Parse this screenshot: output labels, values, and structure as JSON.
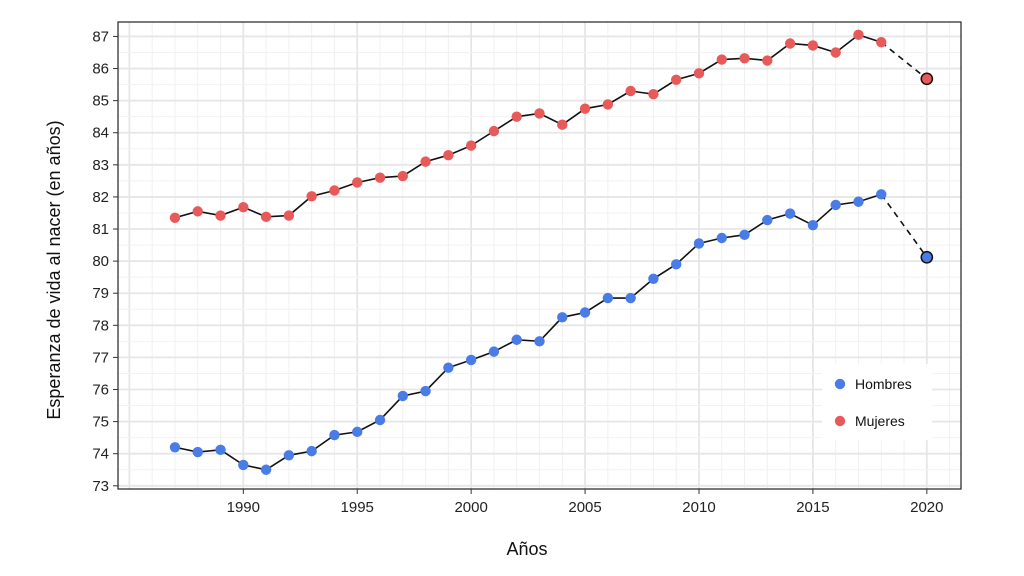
{
  "chart_data": {
    "type": "line",
    "xlabel": "Años",
    "ylabel": "Esperanza de vida al nacer (en años)",
    "xlim": [
      1984.5,
      2021.5
    ],
    "ylim": [
      72.9,
      87.45
    ],
    "x_ticks": [
      1990,
      1995,
      2000,
      2005,
      2010,
      2015,
      2020
    ],
    "y_ticks": [
      73,
      74,
      75,
      76,
      77,
      78,
      79,
      80,
      81,
      82,
      83,
      84,
      85,
      86,
      87
    ],
    "grid": true,
    "legend_position": "bottom-right",
    "series": [
      {
        "name": "Hombres",
        "color": "#4a7ce8",
        "x": [
          1987,
          1988,
          1989,
          1990,
          1991,
          1992,
          1993,
          1994,
          1995,
          1996,
          1997,
          1998,
          1999,
          2000,
          2001,
          2002,
          2003,
          2004,
          2005,
          2006,
          2007,
          2008,
          2009,
          2010,
          2011,
          2012,
          2013,
          2014,
          2015,
          2016,
          2017,
          2018
        ],
        "values": [
          74.2,
          74.05,
          74.12,
          73.65,
          73.5,
          73.95,
          74.08,
          74.58,
          74.68,
          75.05,
          75.8,
          75.95,
          76.68,
          76.92,
          77.18,
          77.55,
          77.5,
          78.25,
          78.4,
          78.85,
          78.85,
          79.45,
          79.9,
          80.55,
          80.72,
          80.82,
          81.28,
          81.48,
          81.12,
          81.75,
          81.85,
          82.08
        ],
        "projection": {
          "x": 2020,
          "value": 80.12
        }
      },
      {
        "name": "Mujeres",
        "color": "#e85a5a",
        "x": [
          1987,
          1988,
          1989,
          1990,
          1991,
          1992,
          1993,
          1994,
          1995,
          1996,
          1997,
          1998,
          1999,
          2000,
          2001,
          2002,
          2003,
          2004,
          2005,
          2006,
          2007,
          2008,
          2009,
          2010,
          2011,
          2012,
          2013,
          2014,
          2015,
          2016,
          2017,
          2018
        ],
        "values": [
          81.35,
          81.55,
          81.42,
          81.68,
          81.38,
          81.42,
          82.02,
          82.2,
          82.45,
          82.6,
          82.65,
          83.1,
          83.3,
          83.6,
          84.05,
          84.5,
          84.6,
          84.25,
          84.75,
          84.88,
          85.3,
          85.2,
          85.65,
          85.85,
          86.28,
          86.32,
          86.25,
          86.78,
          86.72,
          86.5,
          87.05,
          86.82
        ],
        "projection": {
          "x": 2020,
          "value": 85.68
        }
      }
    ]
  }
}
